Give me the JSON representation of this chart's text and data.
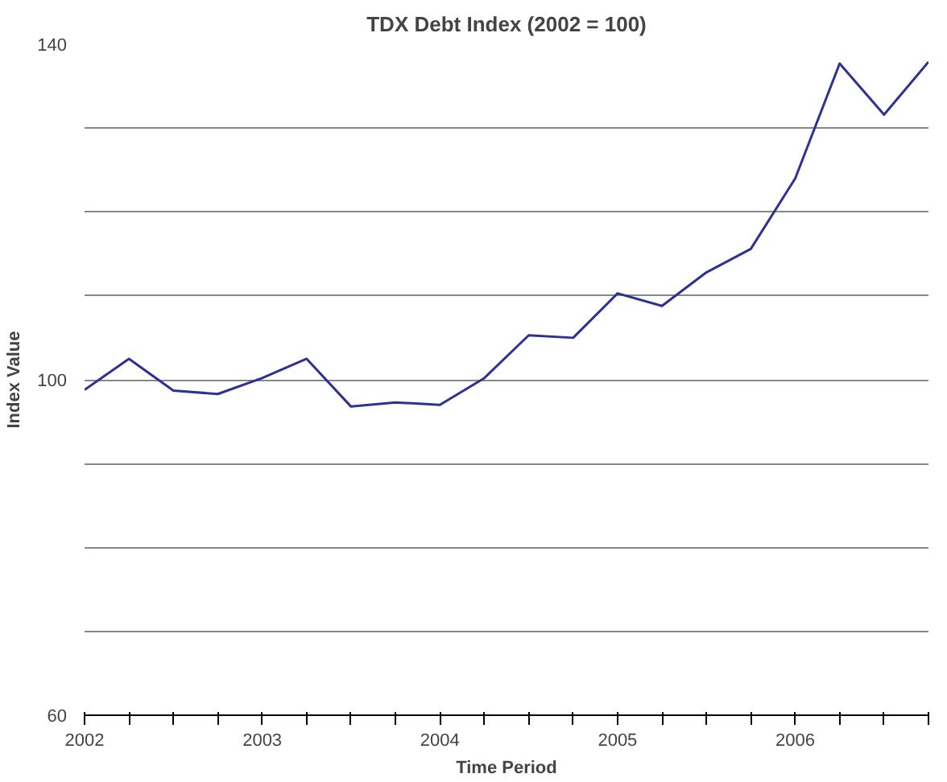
{
  "chart_data": {
    "type": "line",
    "title": "TDX Debt Index (2002 = 100)",
    "xlabel": "Time Period",
    "ylabel": "Index Value",
    "x": [
      2002,
      2002.25,
      2002.5,
      2002.75,
      2003,
      2003.25,
      2003.5,
      2003.75,
      2004,
      2004.25,
      2004.5,
      2004.75,
      2005,
      2005.25,
      2005.5,
      2005.75,
      2006,
      2006.25,
      2006.5,
      2006.75
    ],
    "series": [
      {
        "color": "#2e3192",
        "values": [
          98.8,
          102.5,
          98.7,
          98.3,
          100.2,
          102.5,
          96.8,
          97.3,
          97,
          100.2,
          105.3,
          105,
          110.3,
          108.8,
          112.8,
          115.6,
          124,
          137.7,
          131.6,
          137.9
        ]
      }
    ],
    "xlim": [
      2002,
      2006.75
    ],
    "xticks": [
      2002,
      {
        "value": 2002.25,
        "label": null
      },
      {
        "value": 2002.5,
        "label": null
      },
      {
        "value": 2002.75,
        "label": null
      },
      2003,
      {
        "value": 2003.25,
        "label": null
      },
      {
        "value": 2003.5,
        "label": null
      },
      {
        "value": 2003.75,
        "label": null
      },
      2004,
      {
        "value": 2004.25,
        "label": null
      },
      {
        "value": 2004.5,
        "label": null
      },
      {
        "value": 2004.75,
        "label": null
      },
      2005,
      {
        "value": 2005.25,
        "label": null
      },
      {
        "value": 2005.5,
        "label": null
      },
      {
        "value": 2005.75,
        "label": null
      },
      2006,
      {
        "value": 2006.25,
        "label": null
      },
      {
        "value": 2006.5,
        "label": null
      },
      {
        "value": 2006.75,
        "label": null
      }
    ],
    "ylim": [
      60,
      140
    ],
    "yticks": [
      60,
      {
        "value": 70,
        "label": null
      },
      {
        "value": 80,
        "label": null
      },
      {
        "value": 90,
        "label": null
      },
      100,
      {
        "value": 110,
        "label": null
      },
      {
        "value": 120,
        "label": null
      },
      {
        "value": 130,
        "label": null
      },
      140
    ],
    "grid": "y",
    "marker": "none",
    "line_style": "solid"
  }
}
